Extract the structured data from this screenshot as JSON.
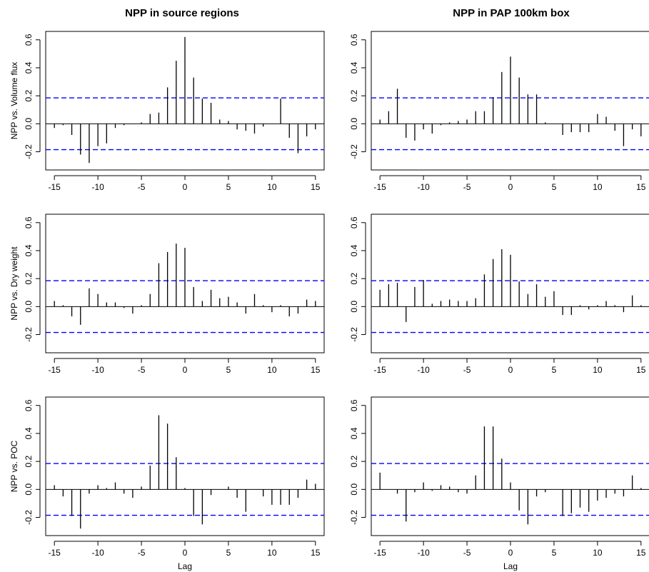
{
  "columns": [
    "NPP in source regions",
    "NPP in PAP 100km box"
  ],
  "rows": [
    "NPP vs. Volume flux",
    "NPP vs. Dry weight",
    "NPP vs. POC"
  ],
  "xlabel": "Lag",
  "colors": {
    "bars": "#000000",
    "confidence": "#0000ff",
    "zero": "#000000",
    "frame": "#000000"
  },
  "chart_data": [
    {
      "type": "bar",
      "column": 0,
      "row": 0,
      "ylabel": "NPP vs. Volume flux",
      "xlim": [
        -16,
        16
      ],
      "ylim": [
        -0.33,
        0.66
      ],
      "xticks": [
        -15,
        -10,
        -5,
        0,
        5,
        10,
        15
      ],
      "yticks": [
        -0.2,
        0.0,
        0.2,
        0.4,
        0.6
      ],
      "confidence": 0.185,
      "x": [
        -15,
        -14,
        -13,
        -12,
        -11,
        -10,
        -9,
        -8,
        -7,
        -6,
        -5,
        -4,
        -3,
        -2,
        -1,
        0,
        1,
        2,
        3,
        4,
        5,
        6,
        7,
        8,
        9,
        10,
        11,
        12,
        13,
        14,
        15
      ],
      "values": [
        -0.03,
        -0.01,
        -0.08,
        -0.22,
        -0.28,
        -0.16,
        -0.14,
        -0.03,
        -0.01,
        0.0,
        0.01,
        0.07,
        0.08,
        0.26,
        0.45,
        0.62,
        0.33,
        0.18,
        0.15,
        0.03,
        0.02,
        -0.04,
        -0.05,
        -0.07,
        -0.02,
        0.0,
        0.18,
        -0.1,
        -0.21,
        -0.09,
        -0.04
      ]
    },
    {
      "type": "bar",
      "column": 1,
      "row": 0,
      "ylabel": "",
      "xlim": [
        -16,
        16
      ],
      "ylim": [
        -0.33,
        0.66
      ],
      "xticks": [
        -15,
        -10,
        -5,
        0,
        5,
        10,
        15
      ],
      "yticks": [
        -0.2,
        0.0,
        0.2,
        0.4,
        0.6
      ],
      "confidence": 0.185,
      "x": [
        -15,
        -14,
        -13,
        -12,
        -11,
        -10,
        -9,
        -8,
        -7,
        -6,
        -5,
        -4,
        -3,
        -2,
        -1,
        0,
        1,
        2,
        3,
        4,
        5,
        6,
        7,
        8,
        9,
        10,
        11,
        12,
        13,
        14,
        15
      ],
      "values": [
        0.03,
        0.09,
        0.25,
        -0.1,
        -0.12,
        -0.04,
        -0.07,
        -0.01,
        0.01,
        0.02,
        0.03,
        0.09,
        0.09,
        0.19,
        0.37,
        0.48,
        0.33,
        0.21,
        0.21,
        0.01,
        0.0,
        -0.08,
        -0.06,
        -0.06,
        -0.06,
        0.07,
        0.05,
        -0.05,
        -0.16,
        -0.04,
        -0.09
      ]
    },
    {
      "type": "bar",
      "column": 0,
      "row": 1,
      "ylabel": "NPP vs. Dry weight",
      "xlim": [
        -16,
        16
      ],
      "ylim": [
        -0.33,
        0.66
      ],
      "xticks": [
        -15,
        -10,
        -5,
        0,
        5,
        10,
        15
      ],
      "yticks": [
        -0.2,
        0.0,
        0.2,
        0.4,
        0.6
      ],
      "confidence": 0.185,
      "x": [
        -15,
        -14,
        -13,
        -12,
        -11,
        -10,
        -9,
        -8,
        -7,
        -6,
        -5,
        -4,
        -3,
        -2,
        -1,
        0,
        1,
        2,
        3,
        4,
        5,
        6,
        7,
        8,
        9,
        10,
        11,
        12,
        13,
        14,
        15
      ],
      "values": [
        0.04,
        0.01,
        -0.07,
        -0.13,
        0.13,
        0.09,
        0.03,
        0.03,
        -0.01,
        -0.05,
        0.01,
        0.09,
        0.31,
        0.39,
        0.45,
        0.42,
        0.14,
        0.04,
        0.12,
        0.06,
        0.07,
        0.03,
        -0.05,
        0.09,
        0.01,
        -0.04,
        0.01,
        -0.07,
        -0.05,
        0.05,
        0.04
      ]
    },
    {
      "type": "bar",
      "column": 1,
      "row": 1,
      "ylabel": "",
      "xlim": [
        -16,
        16
      ],
      "ylim": [
        -0.33,
        0.66
      ],
      "xticks": [
        -15,
        -10,
        -5,
        0,
        5,
        10,
        15
      ],
      "yticks": [
        -0.2,
        0.0,
        0.2,
        0.4,
        0.6
      ],
      "confidence": 0.185,
      "x": [
        -15,
        -14,
        -13,
        -12,
        -11,
        -10,
        -9,
        -8,
        -7,
        -6,
        -5,
        -4,
        -3,
        -2,
        -1,
        0,
        1,
        2,
        3,
        4,
        5,
        6,
        7,
        8,
        9,
        10,
        11,
        12,
        13,
        14,
        15
      ],
      "values": [
        0.12,
        0.16,
        0.17,
        -0.11,
        0.14,
        0.19,
        0.02,
        0.04,
        0.05,
        0.04,
        0.04,
        0.06,
        0.23,
        0.34,
        0.41,
        0.37,
        0.18,
        0.09,
        0.16,
        0.07,
        0.11,
        -0.06,
        -0.06,
        0.01,
        -0.02,
        0.01,
        0.04,
        0.01,
        -0.04,
        0.08,
        0.01
      ]
    },
    {
      "type": "bar",
      "column": 0,
      "row": 2,
      "ylabel": "NPP vs. POC",
      "xlim": [
        -16,
        16
      ],
      "ylim": [
        -0.33,
        0.66
      ],
      "xticks": [
        -15,
        -10,
        -5,
        0,
        5,
        10,
        15
      ],
      "yticks": [
        -0.2,
        0.0,
        0.2,
        0.4,
        0.6
      ],
      "confidence": 0.185,
      "x": [
        -15,
        -14,
        -13,
        -12,
        -11,
        -10,
        -9,
        -8,
        -7,
        -6,
        -5,
        -4,
        -3,
        -2,
        -1,
        0,
        1,
        2,
        3,
        4,
        5,
        6,
        7,
        8,
        9,
        10,
        11,
        12,
        13,
        14,
        15
      ],
      "values": [
        0.03,
        -0.05,
        -0.19,
        -0.28,
        -0.03,
        0.03,
        0.01,
        0.05,
        -0.03,
        -0.06,
        0.02,
        0.17,
        0.53,
        0.47,
        0.23,
        0.01,
        -0.19,
        -0.25,
        -0.04,
        0.0,
        0.02,
        -0.06,
        -0.16,
        0.0,
        -0.05,
        -0.11,
        -0.11,
        -0.11,
        -0.06,
        0.07,
        0.04
      ]
    },
    {
      "type": "bar",
      "column": 1,
      "row": 2,
      "ylabel": "",
      "xlim": [
        -16,
        16
      ],
      "ylim": [
        -0.33,
        0.66
      ],
      "xticks": [
        -15,
        -10,
        -5,
        0,
        5,
        10,
        15
      ],
      "yticks": [
        -0.2,
        0.0,
        0.2,
        0.4,
        0.6
      ],
      "confidence": 0.185,
      "x": [
        -15,
        -14,
        -13,
        -12,
        -11,
        -10,
        -9,
        -8,
        -7,
        -6,
        -5,
        -4,
        -3,
        -2,
        -1,
        0,
        1,
        2,
        3,
        4,
        5,
        6,
        7,
        8,
        9,
        10,
        11,
        12,
        13,
        14,
        15
      ],
      "values": [
        0.12,
        0.0,
        -0.03,
        -0.23,
        -0.02,
        0.05,
        -0.01,
        0.03,
        0.02,
        -0.02,
        -0.03,
        0.1,
        0.45,
        0.45,
        0.22,
        0.05,
        -0.15,
        -0.25,
        -0.05,
        -0.02,
        0.0,
        -0.19,
        -0.17,
        -0.13,
        -0.16,
        -0.08,
        -0.06,
        -0.03,
        -0.05,
        0.1,
        0.01
      ]
    }
  ]
}
